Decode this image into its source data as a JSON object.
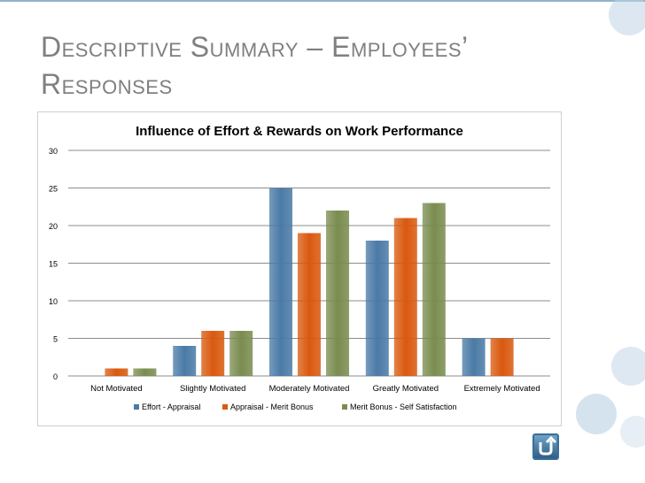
{
  "slide": {
    "title_line1": "Descriptive Summary – Employees’",
    "title_line2": "Responses"
  },
  "chart_data": {
    "type": "bar",
    "title": "Influence of Effort & Rewards on Work Performance",
    "categories": [
      "Not Motivated",
      "Slightly Motivated",
      "Moderately Motivated",
      "Greatly Motivated",
      "Extremely Motivated"
    ],
    "series": [
      {
        "name": "Effort - Appraisal",
        "values": [
          0,
          4,
          25,
          18,
          5
        ],
        "color": "#4a7aa6"
      },
      {
        "name": "Appraisal - Merit Bonus",
        "values": [
          1,
          6,
          19,
          21,
          5
        ],
        "color": "#d9590e"
      },
      {
        "name": "Merit Bonus - Self Satisfaction",
        "values": [
          1,
          6,
          22,
          23,
          0
        ],
        "color": "#7a8c4f"
      }
    ],
    "y_ticks": [
      "0",
      "5",
      "10",
      "15",
      "20",
      "25",
      "30"
    ],
    "ylim": [
      0,
      30
    ],
    "grid": true,
    "legend": "bottom"
  },
  "icons": {
    "return_button": "return-arrow-icon"
  }
}
